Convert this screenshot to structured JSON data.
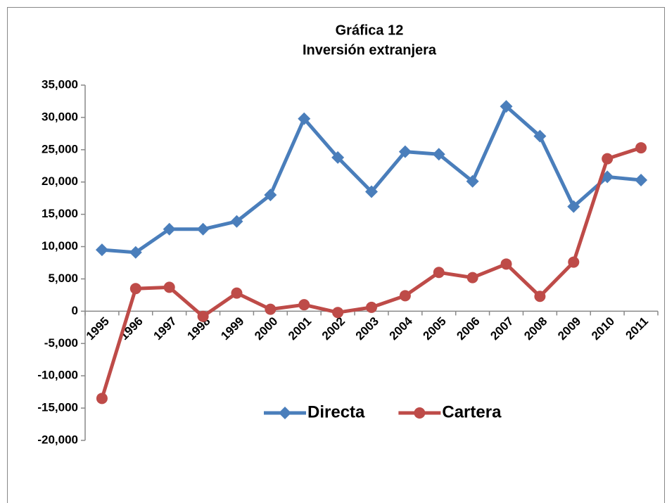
{
  "chart_data": {
    "type": "line",
    "title": "Gráfica 12",
    "subtitle": "Inversión extranjera",
    "categories": [
      "1995",
      "1996",
      "1997",
      "1998",
      "1999",
      "2000",
      "2001",
      "2002",
      "2003",
      "2004",
      "2005",
      "2006",
      "2007",
      "2008",
      "2009",
      "2010",
      "2011"
    ],
    "series": [
      {
        "name": "Directa",
        "color": "#4a7ebb",
        "marker": "diamond",
        "values": [
          9500,
          9100,
          12700,
          12700,
          13900,
          18000,
          29800,
          23800,
          18500,
          24700,
          24300,
          20100,
          31700,
          27100,
          16200,
          20800,
          20300
        ]
      },
      {
        "name": "Cartera",
        "color": "#be4b48",
        "marker": "circle",
        "values": [
          -13500,
          3500,
          3700,
          -800,
          2800,
          300,
          1000,
          -200,
          600,
          2400,
          6000,
          5200,
          7300,
          2300,
          7600,
          23600,
          25300
        ]
      }
    ],
    "ylim": [
      -20000,
      35000
    ],
    "yticks": [
      {
        "value": -20000,
        "label": "-20,000"
      },
      {
        "value": -15000,
        "label": "-15,000"
      },
      {
        "value": -10000,
        "label": "-10,000"
      },
      {
        "value": -5000,
        "label": "-5,000"
      },
      0,
      {
        "value": 5000,
        "label": "5,000"
      },
      {
        "value": 10000,
        "label": "10,000"
      },
      {
        "value": 15000,
        "label": "15,000"
      },
      {
        "value": 20000,
        "label": "20,000"
      },
      {
        "value": 25000,
        "label": "25,000"
      },
      {
        "value": 30000,
        "label": "30,000"
      },
      {
        "value": 35000,
        "label": "35,000"
      }
    ],
    "grid": false,
    "legend": "bottom"
  }
}
